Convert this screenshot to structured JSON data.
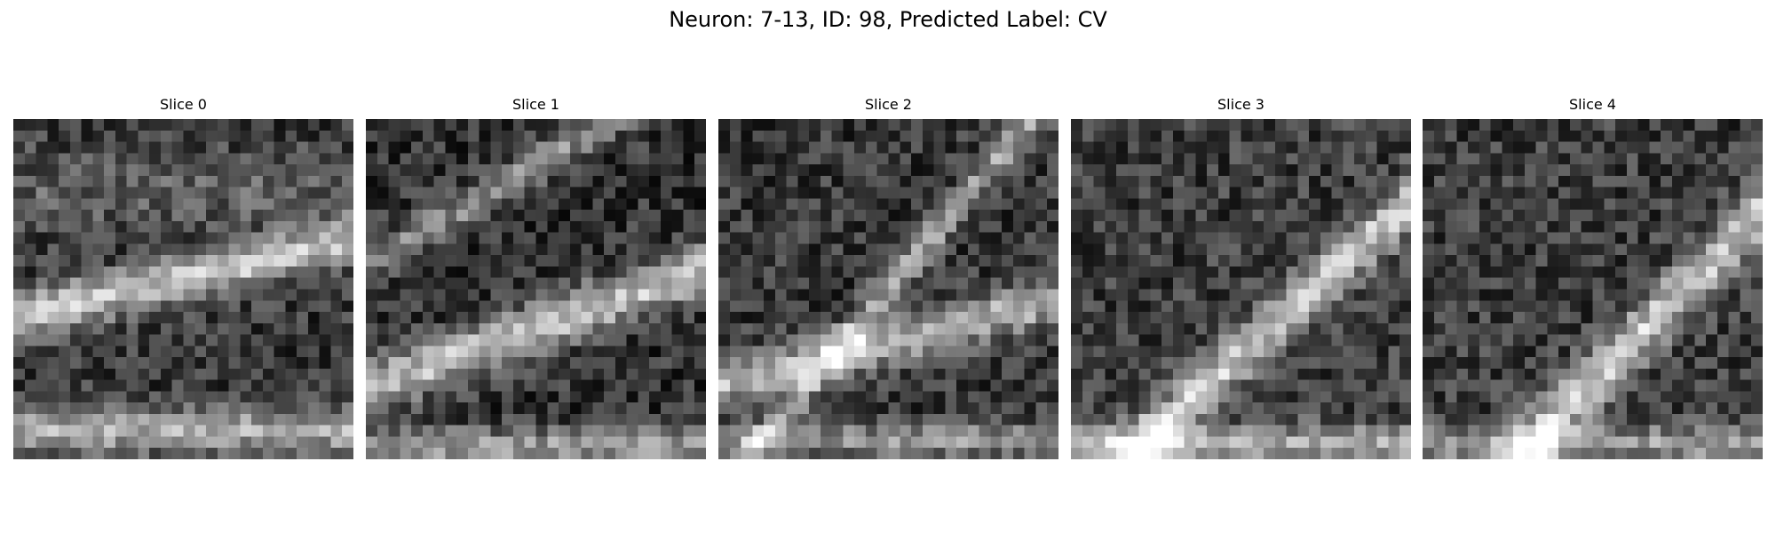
{
  "title": "Neuron: 7-13, ID: 98, Predicted Label: CV",
  "slices": [
    {
      "label": "Slice 0",
      "seed": 11,
      "bands": [
        {
          "center": 0.47,
          "width": 0.07,
          "slope": -0.22,
          "amp": 0.55
        },
        {
          "center": 0.93,
          "width": 0.07,
          "slope": 0.0,
          "amp": 0.45
        },
        {
          "center": 0.2,
          "width": 0.12,
          "slope": 0.0,
          "amp": 0.15
        }
      ],
      "base": 0.22
    },
    {
      "label": "Slice 1",
      "seed": 23,
      "bands": [
        {
          "center": 0.62,
          "width": 0.08,
          "slope": -0.35,
          "amp": 0.55
        },
        {
          "center": 0.98,
          "width": 0.06,
          "slope": 0.0,
          "amp": 0.4
        },
        {
          "center": 0.12,
          "width": 0.06,
          "slope": -0.6,
          "amp": 0.35
        }
      ],
      "base": 0.2
    },
    {
      "label": "Slice 2",
      "seed": 37,
      "bands": [
        {
          "center": 0.66,
          "width": 0.07,
          "slope": -0.25,
          "amp": 0.5
        },
        {
          "center": 0.5,
          "width": 0.07,
          "slope": -1.2,
          "amp": 0.4
        },
        {
          "center": 0.96,
          "width": 0.05,
          "slope": 0.0,
          "amp": 0.35
        }
      ],
      "base": 0.22
    },
    {
      "label": "Slice 3",
      "seed": 51,
      "bands": [
        {
          "center": 0.7,
          "width": 0.09,
          "slope": -0.9,
          "amp": 0.55
        },
        {
          "center": 0.97,
          "width": 0.06,
          "slope": 0.0,
          "amp": 0.4
        }
      ],
      "base": 0.24
    },
    {
      "label": "Slice 4",
      "seed": 67,
      "bands": [
        {
          "center": 0.78,
          "width": 0.1,
          "slope": -1.0,
          "amp": 0.55
        },
        {
          "center": 0.97,
          "width": 0.05,
          "slope": 0.0,
          "amp": 0.4
        }
      ],
      "base": 0.24
    }
  ],
  "grid_size": 30
}
